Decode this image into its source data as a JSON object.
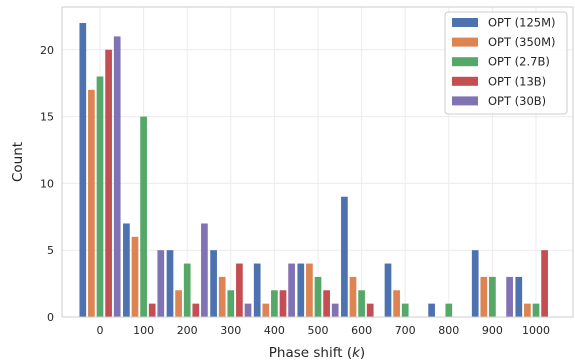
{
  "chart_data": {
    "type": "bar",
    "xlabel": "Phase shift (",
    "xlabel_var": "k",
    "xlabel_close": ")",
    "ylabel": "Count",
    "categories": [
      "0",
      "100",
      "200",
      "300",
      "400",
      "500",
      "600",
      "700",
      "800",
      "900",
      "1000"
    ],
    "ylim": [
      0,
      23.2
    ],
    "yticks": [
      "0",
      "5",
      "10",
      "15",
      "20"
    ],
    "grid": true,
    "legend_position": "top-right",
    "series": [
      {
        "name": "OPT (125M)",
        "color": "#4c72b0",
        "values": [
          22,
          7,
          5,
          5,
          4,
          4,
          9,
          4,
          1,
          5,
          3
        ]
      },
      {
        "name": "OPT (350M)",
        "color": "#dd8452",
        "values": [
          17,
          6,
          2,
          3,
          1,
          4,
          3,
          2,
          0,
          3,
          1
        ]
      },
      {
        "name": "OPT (2.7B)",
        "color": "#55a868",
        "values": [
          18,
          15,
          4,
          2,
          2,
          3,
          2,
          1,
          1,
          3,
          1
        ]
      },
      {
        "name": "OPT (13B)",
        "color": "#c44e52",
        "values": [
          20,
          1,
          1,
          4,
          2,
          2,
          1,
          0,
          0,
          0,
          5
        ]
      },
      {
        "name": "OPT (30B)",
        "color": "#8172b3",
        "values": [
          21,
          5,
          7,
          1,
          4,
          1,
          0,
          0,
          0,
          3,
          0
        ]
      }
    ]
  }
}
